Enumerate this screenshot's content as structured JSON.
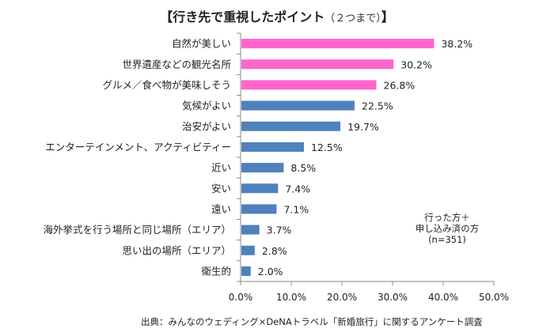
{
  "chart_data": {
    "type": "bar",
    "orientation": "horizontal",
    "title": "【行き先で重視したポイント",
    "title_suffix": "（２つまで）",
    "title_close": "】",
    "categories": [
      "自然が美しい",
      "世界遺産などの観光名所",
      "グルメ／食べ物が美味しそう",
      "気候がよい",
      "治安がよい",
      "エンターテインメント、アクティビティー",
      "近い",
      "安い",
      "遠い",
      "海外挙式を行う場所と同じ場所（エリア）",
      "思い出の場所（エリア）",
      "衛生的"
    ],
    "values": [
      38.2,
      30.2,
      26.8,
      22.5,
      19.7,
      12.5,
      8.5,
      7.4,
      7.1,
      3.7,
      2.8,
      2.0
    ],
    "value_labels": [
      "38.2%",
      "30.2%",
      "26.8%",
      "22.5%",
      "19.7%",
      "12.5%",
      "8.5%",
      "7.4%",
      "7.1%",
      "3.7%",
      "2.8%",
      "2.0%"
    ],
    "highlight_count": 3,
    "colors": {
      "highlight": "#ff66cc",
      "normal": "#4f81bd",
      "axis": "#888888"
    },
    "xlim": [
      0,
      50
    ],
    "xticks": [
      0,
      10,
      20,
      30,
      40,
      50
    ],
    "xtick_labels": [
      "0.0%",
      "10.0%",
      "20.0%",
      "30.0%",
      "40.0%",
      "50.0%"
    ],
    "xlabel": "",
    "ylabel": "",
    "grid": false,
    "legend": null,
    "annotation": [
      "行った方＋",
      "申し込み済の方",
      "(n=351)"
    ],
    "source": "出典：みんなのウェディング×DeNAトラベル「新婚旅行」に関するアンケート調査"
  }
}
